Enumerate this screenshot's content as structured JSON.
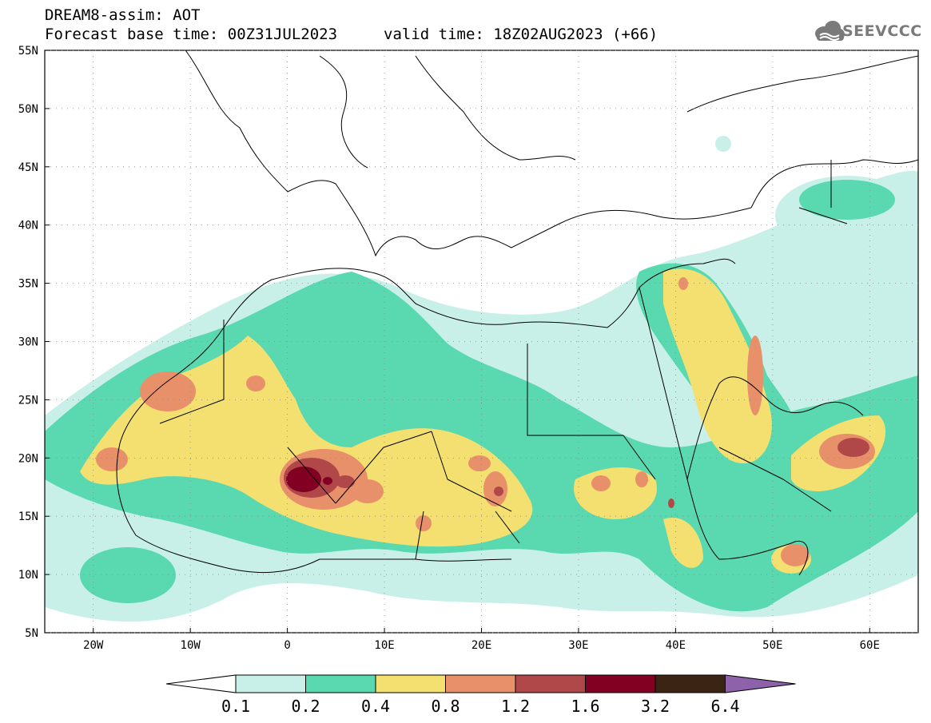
{
  "header": {
    "line1": "DREAM8-assim: AOT",
    "line2": "Forecast base time: 00Z31JUL2023",
    "valid": "valid time: 18Z02AUG2023 (+66)"
  },
  "logo": {
    "text": "SEEVCCC",
    "icon": "cloud-icon"
  },
  "axes": {
    "lat_labels": [
      "55N",
      "50N",
      "45N",
      "40N",
      "35N",
      "30N",
      "25N",
      "20N",
      "15N",
      "10N",
      "5N"
    ],
    "lon_labels": [
      "20W",
      "10W",
      "0",
      "10E",
      "20E",
      "30E",
      "40E",
      "50E",
      "60E"
    ],
    "lon_range": [
      -25,
      65
    ],
    "lat_range": [
      5,
      55
    ]
  },
  "colorbar": {
    "labels": [
      "0.1",
      "0.2",
      "0.4",
      "0.8",
      "1.2",
      "1.6",
      "3.2",
      "6.4"
    ],
    "colors": [
      "#ffffff",
      "#c8f0e8",
      "#5ad8b0",
      "#f4e070",
      "#e8906a",
      "#b0484a",
      "#820022",
      "#3c2414",
      "#8e62aa"
    ]
  },
  "palette": {
    "c01": "#c8f0e8",
    "c02": "#5ad8b0",
    "c04": "#f4e070",
    "c08": "#e8906a",
    "c12": "#b0484a",
    "c16": "#820022"
  }
}
